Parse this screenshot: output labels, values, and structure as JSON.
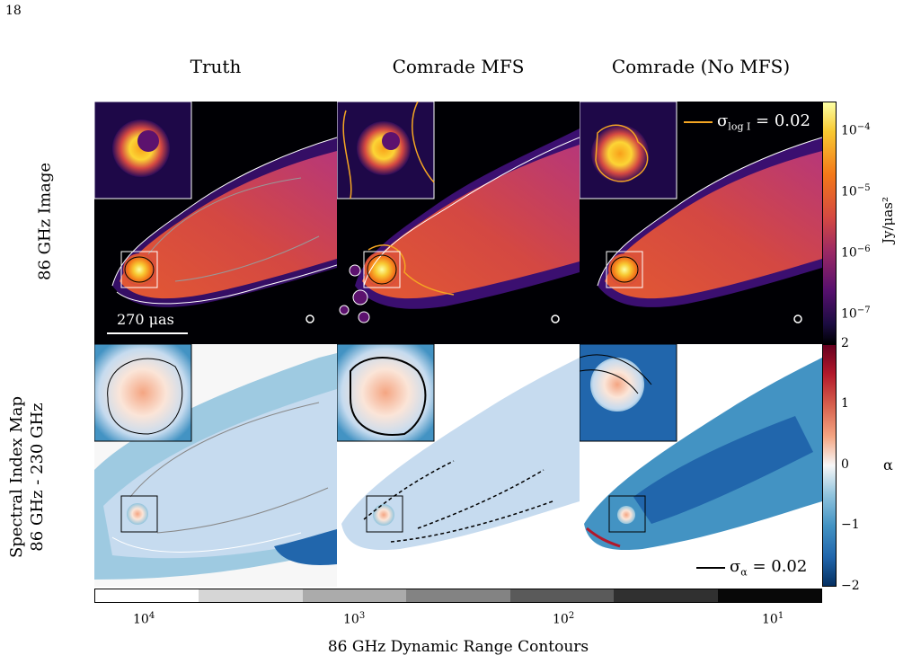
{
  "page_number": "18",
  "columns": [
    "Truth",
    "Comrade MFS",
    "Comrade (No MFS)"
  ],
  "rows": {
    "top_label": "86 GHz Image",
    "bottom_label_line1": "Spectral Index Map",
    "bottom_label_line2": "86 GHz - 230 GHz"
  },
  "scale_bar_label": "270 μas",
  "legend_top": "σ_logI = 0.02",
  "legend_top_parts": {
    "sym": "σ",
    "sub": "log I",
    "rest": " = 0.02"
  },
  "legend_bottom_parts": {
    "sym": "σ",
    "sub": "α",
    "rest": " = 0.02"
  },
  "colors": {
    "legend_top_line": "#f5a623",
    "legend_bottom_line": "#000000",
    "image_bg": "#000004",
    "map_bg": "#ffffff"
  },
  "colorbar_image": {
    "label": "Jy/μas²",
    "ticks": [
      {
        "base": "10",
        "exp": "−4"
      },
      {
        "base": "10",
        "exp": "−5"
      },
      {
        "base": "10",
        "exp": "−6"
      },
      {
        "base": "10",
        "exp": "−7"
      }
    ],
    "scale": "log",
    "colormap": "inferno"
  },
  "colorbar_alpha": {
    "label": "α",
    "ticks": [
      "2",
      "1",
      "0",
      "−1",
      "−2"
    ],
    "range": [
      -2,
      2
    ],
    "colormap": "RdBu"
  },
  "dynamic_range_bar": {
    "label": "86 GHz Dynamic Range Contours",
    "ticks": [
      {
        "base": "10",
        "exp": "4"
      },
      {
        "base": "10",
        "exp": "3"
      },
      {
        "base": "10",
        "exp": "2"
      },
      {
        "base": "10",
        "exp": "1"
      }
    ],
    "swatches": [
      "#ffffff",
      "#d6d6d6",
      "#ababab",
      "#838383",
      "#5a5a5a",
      "#303030",
      "#080808"
    ]
  }
}
